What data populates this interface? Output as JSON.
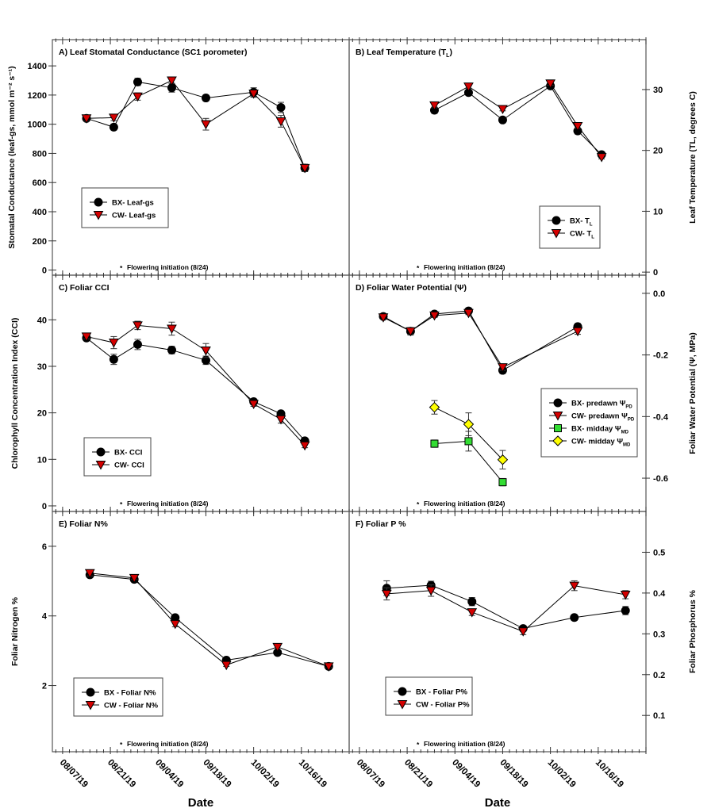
{
  "x_axis": {
    "label": "Date",
    "xlim": [
      "2019-08-04",
      "2019-10-30"
    ],
    "tick_dates": [
      "2019-08-07",
      "2019-08-21",
      "2019-09-04",
      "2019-09-18",
      "2019-10-02",
      "2019-10-16"
    ],
    "tick_labels": [
      "08/07/19",
      "08/21/19",
      "09/04/19",
      "09/18/19",
      "10/02/19",
      "10/16/19"
    ]
  },
  "annotation": {
    "marker": "*",
    "text": "Flowering initiation (8/24)"
  },
  "chart_data": [
    {
      "type": "line",
      "title": "A) Leaf Stomatal Conductance (SC1 porometer)",
      "title_sub": "",
      "title_end": "",
      "ylabel": "Stomatal Conductance (leaf-gs, mmol m⁻² s⁻¹)",
      "yaxis_side": "left",
      "ylim": [
        -35,
        1580
      ],
      "yticks": [
        0,
        200,
        400,
        600,
        800,
        1000,
        1200,
        1400
      ],
      "ytick_labels": [
        "0",
        "200",
        "400",
        "600",
        "800",
        "1000",
        "1200",
        "1400"
      ],
      "legend_position": "middle-left",
      "series": [
        {
          "name": "BX- Leaf-gs",
          "name_sub": "",
          "marker": "circle",
          "color": "#000000",
          "x": [
            "2019-08-14",
            "2019-08-22",
            "2019-08-29",
            "2019-09-08",
            "2019-09-18",
            "2019-10-02",
            "2019-10-10",
            "2019-10-17"
          ],
          "y": [
            1040,
            980,
            1290,
            1250,
            1180,
            1220,
            1115,
            700
          ],
          "err": [
            20,
            20,
            25,
            30,
            20,
            30,
            35,
            25
          ]
        },
        {
          "name": "CW- Leaf-gs",
          "name_sub": "",
          "marker": "triangle-down",
          "color": "#d40000",
          "x": [
            "2019-08-14",
            "2019-08-22",
            "2019-08-29",
            "2019-09-08",
            "2019-09-18",
            "2019-10-02",
            "2019-10-10",
            "2019-10-17"
          ],
          "y": [
            1040,
            1045,
            1190,
            1300,
            1000,
            1210,
            1020,
            700
          ],
          "err": [
            20,
            20,
            25,
            20,
            40,
            25,
            40,
            25
          ]
        }
      ]
    },
    {
      "type": "line",
      "title": "B) Leaf Temperature (T",
      "title_sub": "L",
      "title_end": ")",
      "ylabel": "Leaf Temperature (TL, degrees C)",
      "yaxis_side": "right",
      "ylim": [
        -0.5,
        38.2
      ],
      "yticks": [
        0,
        10,
        20,
        30
      ],
      "ytick_labels": [
        "0",
        "10",
        "20",
        "30"
      ],
      "legend_position": "lower-right",
      "series": [
        {
          "name": "BX- T",
          "name_sub": "L",
          "marker": "circle",
          "color": "#000000",
          "x": [
            "2019-08-29",
            "2019-09-08",
            "2019-09-18",
            "2019-10-02",
            "2019-10-10",
            "2019-10-17"
          ],
          "y": [
            26.6,
            29.5,
            25.0,
            30.6,
            23.2,
            19.3
          ],
          "err": [
            0.5,
            0.4,
            0.4,
            0.4,
            0.5,
            0.3
          ]
        },
        {
          "name": "CW- T",
          "name_sub": "L",
          "marker": "triangle-down",
          "color": "#d40000",
          "x": [
            "2019-08-29",
            "2019-09-08",
            "2019-09-18",
            "2019-10-02",
            "2019-10-10",
            "2019-10-17"
          ],
          "y": [
            27.4,
            30.5,
            26.8,
            31.0,
            24.0,
            18.9
          ],
          "err": [
            0.4,
            0.3,
            0.3,
            0.3,
            0.4,
            0.3
          ]
        }
      ]
    },
    {
      "type": "line",
      "title": "C) Foliar CCI",
      "title_sub": "",
      "title_end": "",
      "ylabel": "Chlorophyll Concentration Index (CCI)",
      "yaxis_side": "left",
      "ylim": [
        -1.2,
        49.6
      ],
      "yticks": [
        0,
        10,
        20,
        30,
        40
      ],
      "ytick_labels": [
        "0",
        "10",
        "20",
        "30",
        "40"
      ],
      "legend_position": "lower-left",
      "series": [
        {
          "name": "BX- CCI",
          "name_sub": "",
          "marker": "circle",
          "color": "#000000",
          "x": [
            "2019-08-14",
            "2019-08-22",
            "2019-08-29",
            "2019-09-08",
            "2019-09-18",
            "2019-10-02",
            "2019-10-10",
            "2019-10-17"
          ],
          "y": [
            36.1,
            31.5,
            34.7,
            33.5,
            31.3,
            22.4,
            19.8,
            14.0
          ],
          "err": [
            0.6,
            1.1,
            1.1,
            0.8,
            0.9,
            0.6,
            0.6,
            0.5
          ]
        },
        {
          "name": "CW- CCI",
          "name_sub": "",
          "marker": "triangle-down",
          "color": "#d40000",
          "x": [
            "2019-08-14",
            "2019-08-22",
            "2019-08-29",
            "2019-09-08",
            "2019-09-18",
            "2019-10-02",
            "2019-10-10",
            "2019-10-17"
          ],
          "y": [
            36.4,
            35.1,
            38.8,
            38.1,
            33.4,
            21.9,
            18.6,
            13.0
          ],
          "err": [
            0.5,
            1.3,
            0.9,
            1.4,
            1.5,
            0.5,
            0.8,
            0.5
          ]
        }
      ]
    },
    {
      "type": "line",
      "title": "D) Foliar Water Potential (Ψ)",
      "title_sub": "",
      "title_end": "",
      "ylabel": "Foliar Water Potential (Ψ, MPa)",
      "yaxis_side": "right",
      "ylim": [
        -0.708,
        0.059
      ],
      "yticks": [
        0,
        -0.2,
        -0.4,
        -0.6
      ],
      "ytick_labels": [
        "0.0",
        "-0.2",
        "-0.4",
        "-0.6"
      ],
      "legend_position": "middle-right",
      "series": [
        {
          "name": "BX- predawn Ψ",
          "name_sub": "PD",
          "marker": "circle",
          "color": "#000000",
          "x": [
            "2019-08-14",
            "2019-08-22",
            "2019-08-29",
            "2019-09-08",
            "2019-09-18",
            "2019-10-10"
          ],
          "y": [
            -0.075,
            -0.123,
            -0.067,
            -0.057,
            -0.25,
            -0.108
          ],
          "err": [
            0.006,
            0.012,
            0.006,
            0.005,
            0.01,
            0.01
          ]
        },
        {
          "name": "CW- predawn Ψ",
          "name_sub": "PD",
          "marker": "triangle-down",
          "color": "#d40000",
          "x": [
            "2019-08-14",
            "2019-08-22",
            "2019-08-29",
            "2019-09-08",
            "2019-09-18",
            "2019-10-10"
          ],
          "y": [
            -0.078,
            -0.123,
            -0.072,
            -0.064,
            -0.24,
            -0.123
          ],
          "err": [
            0.006,
            0.01,
            0.006,
            0.005,
            0.01,
            0.01
          ]
        },
        {
          "name": "BX- midday Ψ",
          "name_sub": "MD",
          "marker": "square",
          "color": "#33dd33",
          "x": [
            "2019-08-29",
            "2019-09-08",
            "2019-09-18"
          ],
          "y": [
            -0.488,
            -0.48,
            -0.613
          ],
          "err": [
            0.012,
            0.032,
            0.012
          ]
        },
        {
          "name": "CW- midday Ψ",
          "name_sub": "MD",
          "marker": "diamond",
          "color": "#ffff00",
          "x": [
            "2019-08-29",
            "2019-09-08",
            "2019-09-18"
          ],
          "y": [
            -0.37,
            -0.425,
            -0.54
          ],
          "err": [
            0.022,
            0.037,
            0.03
          ]
        }
      ]
    },
    {
      "type": "line",
      "title": "E) Foliar N%",
      "title_sub": "",
      "title_end": "",
      "ylabel": "Foliar Nitrogen %",
      "yaxis_side": "left",
      "ylim": [
        0.1,
        7.0
      ],
      "yticks": [
        2,
        4,
        6
      ],
      "ytick_labels": [
        "2",
        "4",
        "6"
      ],
      "legend_position": "lower-left",
      "series": [
        {
          "name": "BX - Foliar N%",
          "name_sub": "",
          "marker": "circle",
          "color": "#000000",
          "x": [
            "2019-08-15",
            "2019-08-28",
            "2019-09-09",
            "2019-09-24",
            "2019-10-09",
            "2019-10-24"
          ],
          "y": [
            5.18,
            5.05,
            3.95,
            2.73,
            2.95,
            2.55
          ],
          "err": [
            0.06,
            0.04,
            0.05,
            0.04,
            0.03,
            0.03
          ]
        },
        {
          "name": "CW - Foliar N%",
          "name_sub": "",
          "marker": "triangle-down",
          "color": "#d40000",
          "x": [
            "2019-08-15",
            "2019-08-28",
            "2019-09-09",
            "2019-09-24",
            "2019-10-09",
            "2019-10-24"
          ],
          "y": [
            5.23,
            5.09,
            3.77,
            2.59,
            3.11,
            2.55
          ],
          "err": [
            0.08,
            0.04,
            0.08,
            0.04,
            0.03,
            0.03
          ]
        }
      ]
    },
    {
      "type": "line",
      "title": "F) Foliar P %",
      "title_sub": "",
      "title_end": "",
      "ylabel": "Foliar Phosphorus %",
      "yaxis_side": "right",
      "ylim": [
        0.011,
        0.6
      ],
      "yticks": [
        0.1,
        0.2,
        0.3,
        0.4,
        0.5
      ],
      "ytick_labels": [
        "0.1",
        "0.2",
        "0.3",
        "0.4",
        "0.5"
      ],
      "legend_position": "lower-left",
      "series": [
        {
          "name": "BX - Foliar P%",
          "name_sub": "",
          "marker": "circle",
          "color": "#000000",
          "x": [
            "2019-08-15",
            "2019-08-28",
            "2019-09-09",
            "2019-09-24",
            "2019-10-09",
            "2019-10-24"
          ],
          "y": [
            0.412,
            0.419,
            0.379,
            0.313,
            0.34,
            0.357
          ],
          "err": [
            0.018,
            0.01,
            0.01,
            0.007,
            0.007,
            0.01
          ]
        },
        {
          "name": "CW - Foliar P%",
          "name_sub": "",
          "marker": "triangle-down",
          "color": "#d40000",
          "x": [
            "2019-08-15",
            "2019-08-28",
            "2019-09-09",
            "2019-09-24",
            "2019-10-09",
            "2019-10-24"
          ],
          "y": [
            0.398,
            0.406,
            0.353,
            0.306,
            0.418,
            0.396
          ],
          "err": [
            0.015,
            0.014,
            0.008,
            0.008,
            0.012,
            0.01
          ]
        }
      ]
    }
  ]
}
